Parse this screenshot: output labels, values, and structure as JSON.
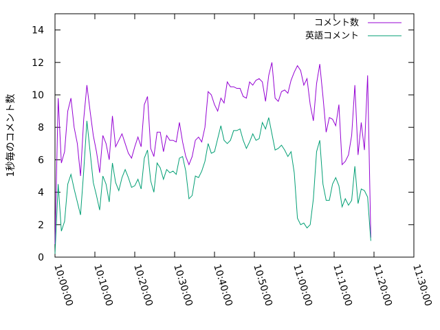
{
  "chart_data": {
    "type": "line",
    "title": "",
    "xlabel": "",
    "ylabel": "1秒毎のコメント数",
    "x_start": "10:00:00",
    "x_step_seconds": 48,
    "x_range": [
      "10:00:00",
      "11:30:00"
    ],
    "x_ticks": [
      "10:00:00",
      "10:10:00",
      "10:20:00",
      "10:30:00",
      "10:40:00",
      "10:50:00",
      "11:00:00",
      "11:10:00",
      "11:20:00",
      "11:30:00"
    ],
    "ylim": [
      0,
      15
    ],
    "y_ticks": [
      0,
      2,
      4,
      6,
      8,
      10,
      12,
      14
    ],
    "grid": false,
    "legend_position": "top-right",
    "series": [
      {
        "name": "コメント数",
        "color": "#9400d3",
        "values": [
          0.8,
          9.8,
          5.8,
          6.5,
          9.0,
          9.8,
          8.0,
          7.0,
          5.0,
          8.5,
          10.6,
          9.0,
          7.5,
          6.5,
          5.2,
          7.5,
          7.0,
          6.0,
          8.7,
          6.8,
          7.2,
          7.6,
          7.0,
          6.4,
          6.1,
          6.8,
          7.4,
          6.8,
          9.4,
          9.9,
          6.7,
          6.2,
          7.7,
          7.7,
          6.5,
          7.5,
          7.2,
          7.2,
          7.1,
          8.3,
          7.1,
          6.2,
          5.7,
          6.2,
          7.2,
          7.4,
          7.1,
          8.0,
          10.2,
          10.0,
          9.4,
          9.0,
          9.8,
          9.5,
          10.8,
          10.5,
          10.5,
          10.4,
          10.4,
          9.9,
          9.8,
          10.8,
          10.6,
          10.9,
          11.0,
          10.8,
          9.6,
          11.2,
          12.0,
          9.8,
          9.6,
          10.2,
          10.3,
          10.1,
          10.9,
          11.4,
          11.8,
          11.5,
          10.6,
          11.0,
          9.4,
          8.4,
          10.7,
          11.9,
          9.9,
          7.7,
          8.6,
          8.5,
          8.1,
          9.4,
          5.7,
          5.9,
          6.3,
          7.5,
          10.6,
          6.3,
          8.3,
          6.6,
          11.2,
          1.2
        ]
      },
      {
        "name": "英語コメント",
        "color": "#009e73",
        "values": [
          0.2,
          4.5,
          1.6,
          2.2,
          4.5,
          5.1,
          4.2,
          3.4,
          2.6,
          5.3,
          8.4,
          6.5,
          4.6,
          3.8,
          2.9,
          5.0,
          4.5,
          3.4,
          5.8,
          4.6,
          4.1,
          4.9,
          5.4,
          4.9,
          4.3,
          4.4,
          4.8,
          4.2,
          6.1,
          6.6,
          4.7,
          4.0,
          5.8,
          5.5,
          4.8,
          5.4,
          5.2,
          5.3,
          5.1,
          6.1,
          6.2,
          5.3,
          3.6,
          3.8,
          5.0,
          4.9,
          5.3,
          5.9,
          7.0,
          6.4,
          6.5,
          7.3,
          8.1,
          7.2,
          7.0,
          7.2,
          7.8,
          7.8,
          7.9,
          7.2,
          6.7,
          7.1,
          7.6,
          7.2,
          7.3,
          8.3,
          7.9,
          8.6,
          7.6,
          6.6,
          6.7,
          6.9,
          6.6,
          6.2,
          6.5,
          5.2,
          2.4,
          2.0,
          2.1,
          1.8,
          2.0,
          3.6,
          6.5,
          7.2,
          4.5,
          3.5,
          3.5,
          4.5,
          4.9,
          4.4,
          3.1,
          3.6,
          3.2,
          3.5,
          5.6,
          3.3,
          4.2,
          4.1,
          3.7,
          1.0
        ]
      }
    ]
  }
}
